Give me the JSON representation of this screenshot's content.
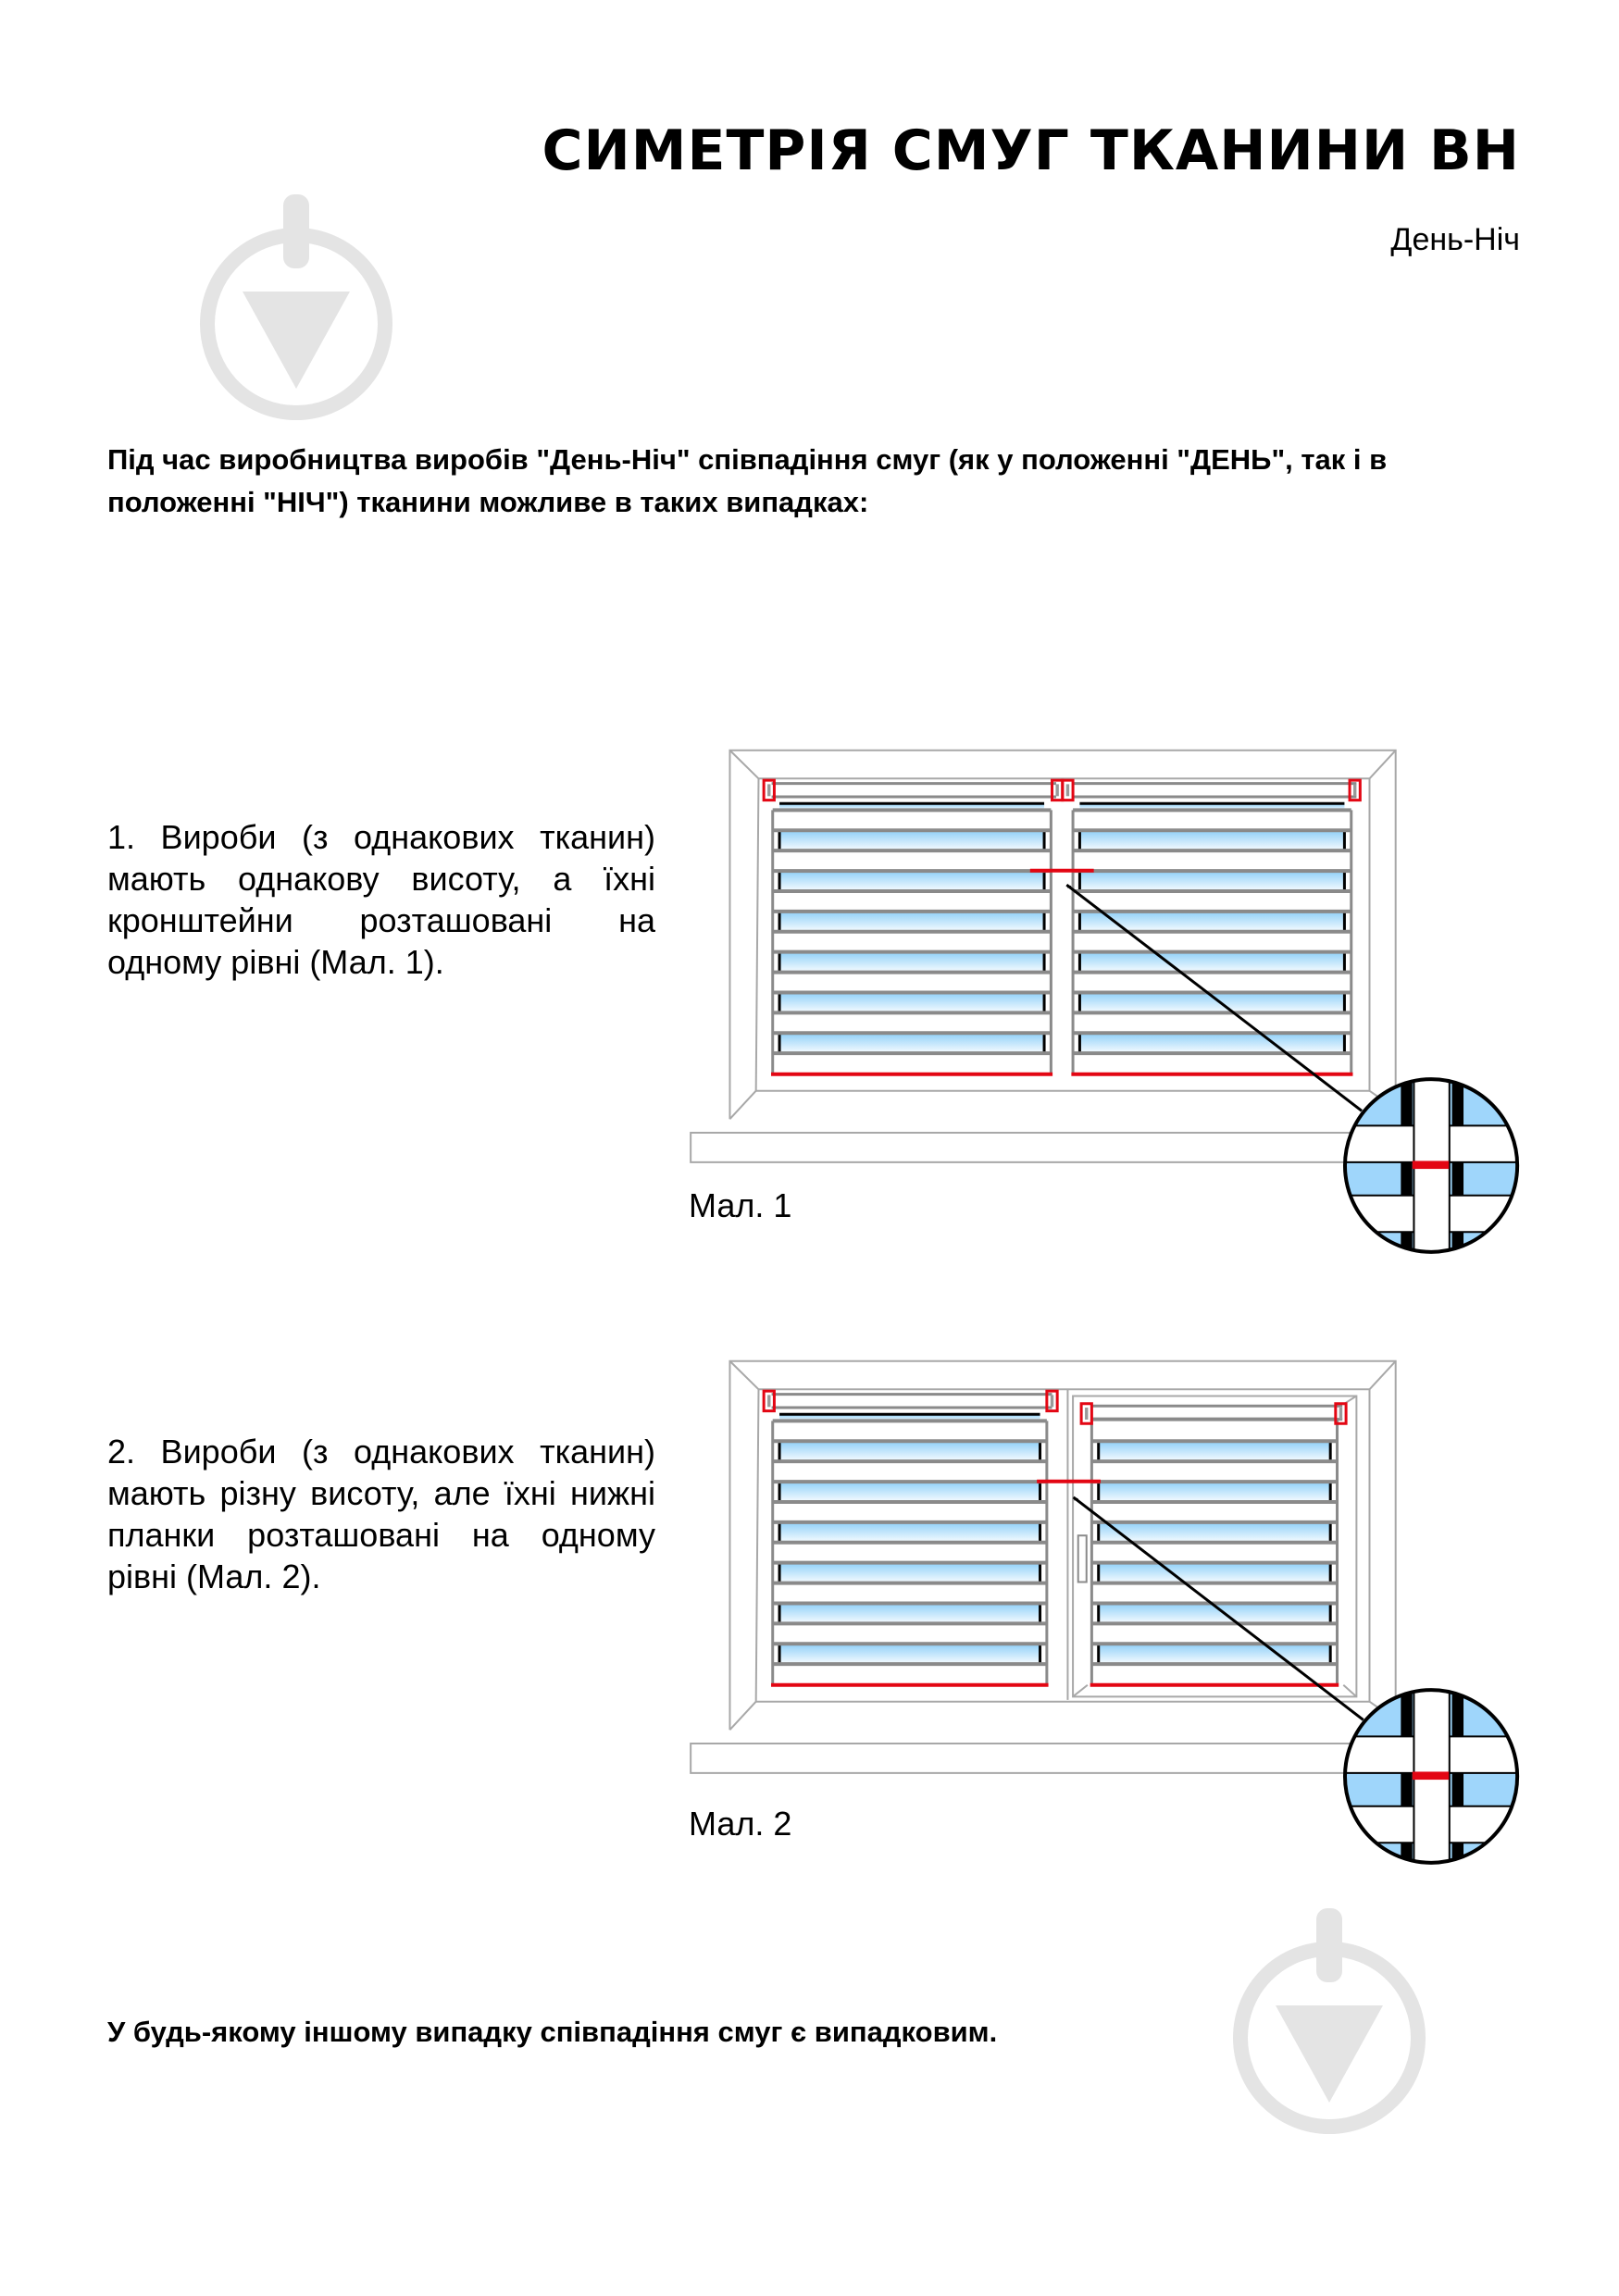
{
  "header": {
    "title": "СИМЕТРІЯ СМУГ ТКАНИНИ ВН",
    "subtitle": "День-Ніч"
  },
  "intro": "Під час виробництва виробів \"День-Ніч\" співпадіння смуг (як у положенні \"ДЕНЬ\", так і в положенні \"НІЧ\") тканини можливе в таких випадках:",
  "items": [
    {
      "text": "1. Вироби (з однакових тканин) мають однакову висоту, а їхні кронштейни розташовані на одному рівні (Мал. 1).",
      "caption": "Мал. 1"
    },
    {
      "text": "2. Вироби (з однакових тканин) мають різну висоту, але їхні нижні планки розташовані на одному рівні (Мал. 2).",
      "caption": "Мал. 2"
    }
  ],
  "outro": "У будь-якому іншому випадку співпадіння смуг є випадковим.",
  "colors": {
    "accent_red": "#e30613",
    "frame_grey": "#8a8a8a",
    "sheer_blue": "#8fd0f8",
    "watermark": "#e4e4e4"
  },
  "icons": [
    "watermark-logo-icon",
    "arrow-icon",
    "magnifier-detail-icon"
  ]
}
